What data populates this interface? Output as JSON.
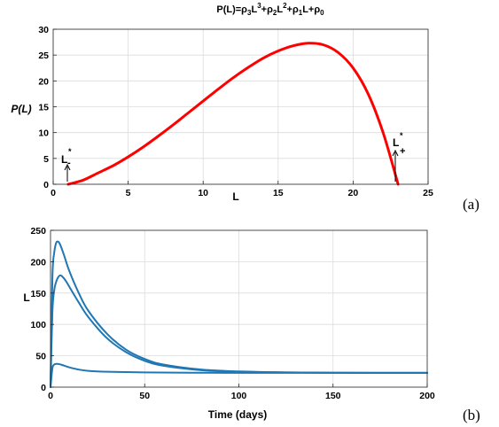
{
  "chart_data": [
    {
      "type": "line",
      "title": "P(L)=ρ₃L³+ρ₂L²+ρ₁L+ρ₀",
      "xlabel": "L",
      "ylabel": "P(L)",
      "xlim": [
        0,
        25
      ],
      "ylim": [
        0,
        30
      ],
      "xticks": [
        0,
        5,
        10,
        15,
        20,
        25
      ],
      "yticks": [
        0,
        5,
        10,
        15,
        20,
        25,
        30
      ],
      "grid": true,
      "series": [
        {
          "color": "#ff0000",
          "x": [
            1,
            2,
            3,
            4,
            5,
            6,
            7,
            8,
            9,
            10,
            11,
            12,
            13,
            14,
            15,
            16,
            17,
            18,
            19,
            20,
            21,
            22,
            23
          ],
          "y": [
            0,
            0.8,
            2.2,
            3.6,
            5.3,
            7.2,
            9.3,
            11.5,
            13.8,
            16.1,
            18.4,
            20.6,
            22.6,
            24.4,
            25.8,
            26.8,
            27.3,
            27.0,
            25.5,
            22.5,
            17.5,
            10.0,
            0
          ]
        }
      ],
      "annotations": [
        {
          "text": "L",
          "superscript": "*",
          "subscript": "-",
          "x": 1
        },
        {
          "text": "L",
          "superscript": "*",
          "subscript": "+",
          "x": 23
        }
      ],
      "panel_label": "(a)"
    },
    {
      "type": "line",
      "title": "",
      "xlabel": "Time (days)",
      "ylabel": "L",
      "xlim": [
        0,
        200
      ],
      "ylim": [
        0,
        250
      ],
      "xticks": [
        0,
        50,
        100,
        150,
        200
      ],
      "yticks": [
        0,
        50,
        100,
        150,
        200,
        250
      ],
      "grid": true,
      "series": [
        {
          "color": "#1f77b4",
          "x": [
            0,
            1,
            2,
            3,
            4,
            5,
            7,
            10,
            15,
            20,
            30,
            40,
            50,
            60,
            80,
            100,
            125,
            150,
            175,
            200
          ],
          "y": [
            0,
            175,
            215,
            230,
            232,
            228,
            212,
            185,
            150,
            122,
            85,
            60,
            45,
            36,
            28,
            25,
            23.5,
            23,
            22.8,
            22.7
          ]
        },
        {
          "color": "#1f77b4",
          "x": [
            0,
            1,
            2,
            3,
            4,
            5,
            6,
            8,
            10,
            15,
            20,
            30,
            40,
            50,
            60,
            80,
            100,
            125,
            150,
            175,
            200
          ],
          "y": [
            0,
            120,
            155,
            168,
            175,
            178,
            177,
            170,
            160,
            135,
            112,
            78,
            56,
            42,
            34,
            27,
            24.5,
            23.5,
            23,
            22.8,
            22.7
          ]
        },
        {
          "color": "#1f77b4",
          "x": [
            0,
            1,
            2,
            3,
            4,
            6,
            8,
            10,
            15,
            20,
            30,
            50,
            75,
            100,
            150,
            200
          ],
          "y": [
            0,
            30,
            36,
            37,
            37,
            35.5,
            33.5,
            31.5,
            28,
            26,
            24.5,
            23.5,
            23,
            22.8,
            22.7,
            22.7
          ]
        }
      ],
      "panel_label": "(b)"
    }
  ]
}
